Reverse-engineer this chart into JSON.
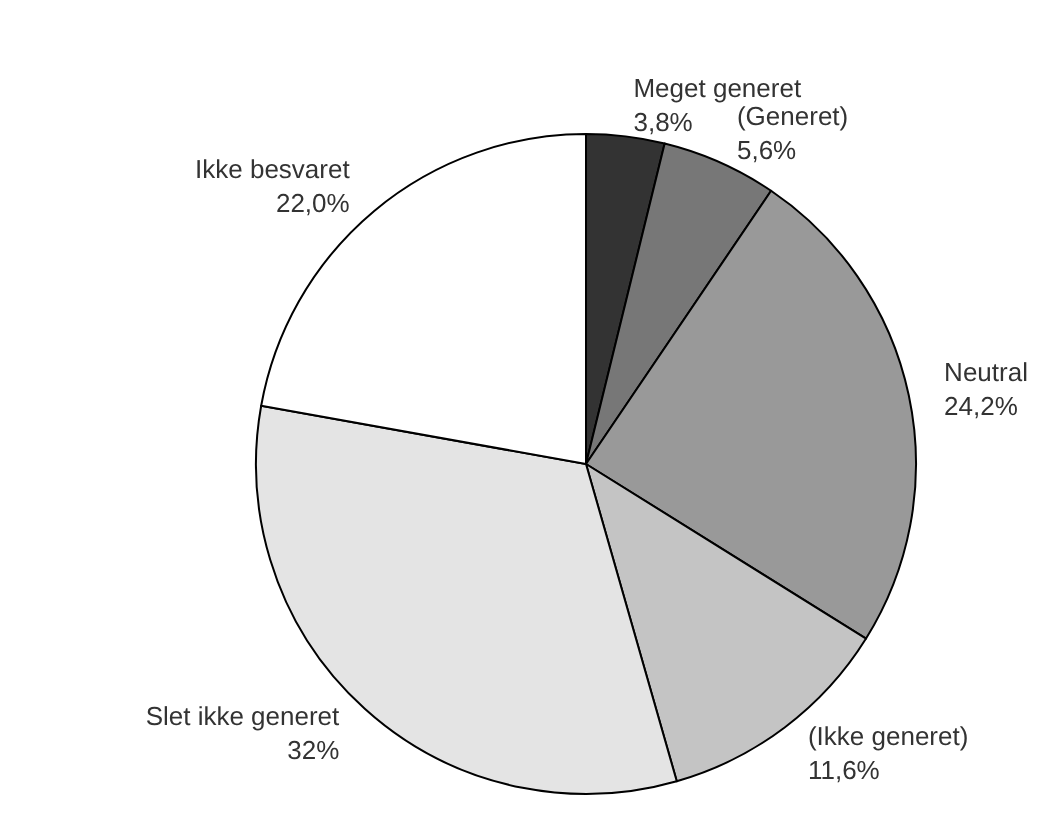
{
  "chart_data": {
    "type": "pie",
    "categories": [
      "Meget generet",
      "(Generet)",
      "Neutral",
      "(Ikke generet)",
      "Slet ikke generet",
      "Ikke besvaret"
    ],
    "values": [
      3.8,
      5.6,
      24.2,
      11.6,
      32,
      22.0
    ],
    "value_labels": [
      "3,8%",
      "5,6%",
      "24,2%",
      "11,6%",
      "32%",
      "22,0%"
    ],
    "colors": [
      "#333333",
      "#777777",
      "#999999",
      "#c4c4c4",
      "#e4e4e4",
      "#ffffff"
    ]
  }
}
